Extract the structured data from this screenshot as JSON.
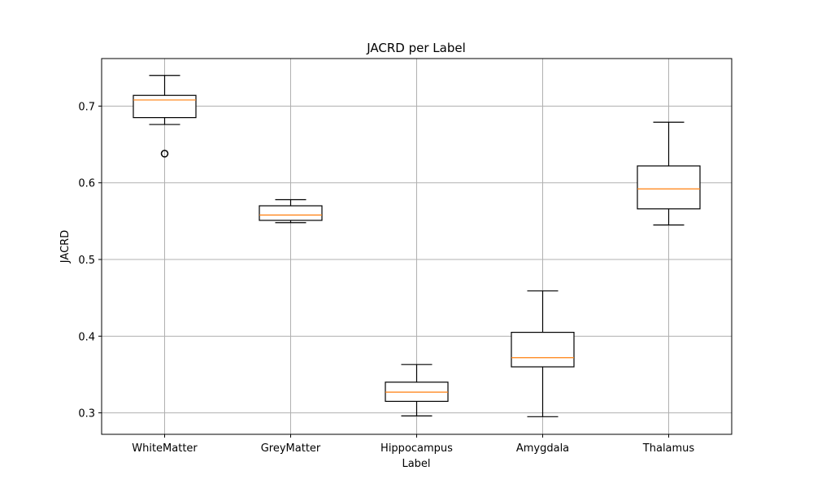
{
  "chart_data": {
    "type": "box",
    "title": "JACRD per Label",
    "xlabel": "Label",
    "ylabel": "JACRD",
    "ylim": [
      0.272,
      0.762
    ],
    "yticks": [
      "0.3",
      "0.4",
      "0.5",
      "0.6",
      "0.7"
    ],
    "grid": true,
    "categories": [
      "WhiteMatter",
      "GreyMatter",
      "Hippocampus",
      "Amygdala",
      "Thalamus"
    ],
    "boxes": [
      {
        "label": "WhiteMatter",
        "whisker_low": 0.676,
        "q1": 0.685,
        "median": 0.708,
        "q3": 0.714,
        "whisker_high": 0.74,
        "outliers": [
          0.638
        ]
      },
      {
        "label": "GreyMatter",
        "whisker_low": 0.548,
        "q1": 0.551,
        "median": 0.558,
        "q3": 0.57,
        "whisker_high": 0.578,
        "outliers": []
      },
      {
        "label": "Hippocampus",
        "whisker_low": 0.296,
        "q1": 0.315,
        "median": 0.327,
        "q3": 0.34,
        "whisker_high": 0.363,
        "outliers": []
      },
      {
        "label": "Amygdala",
        "whisker_low": 0.295,
        "q1": 0.36,
        "median": 0.372,
        "q3": 0.405,
        "whisker_high": 0.459,
        "outliers": []
      },
      {
        "label": "Thalamus",
        "whisker_low": 0.545,
        "q1": 0.566,
        "median": 0.592,
        "q3": 0.622,
        "whisker_high": 0.679,
        "outliers": []
      }
    ],
    "colors": {
      "box": "#000000",
      "median": "#ff7f0e",
      "grid": "#b0b0b0"
    }
  }
}
